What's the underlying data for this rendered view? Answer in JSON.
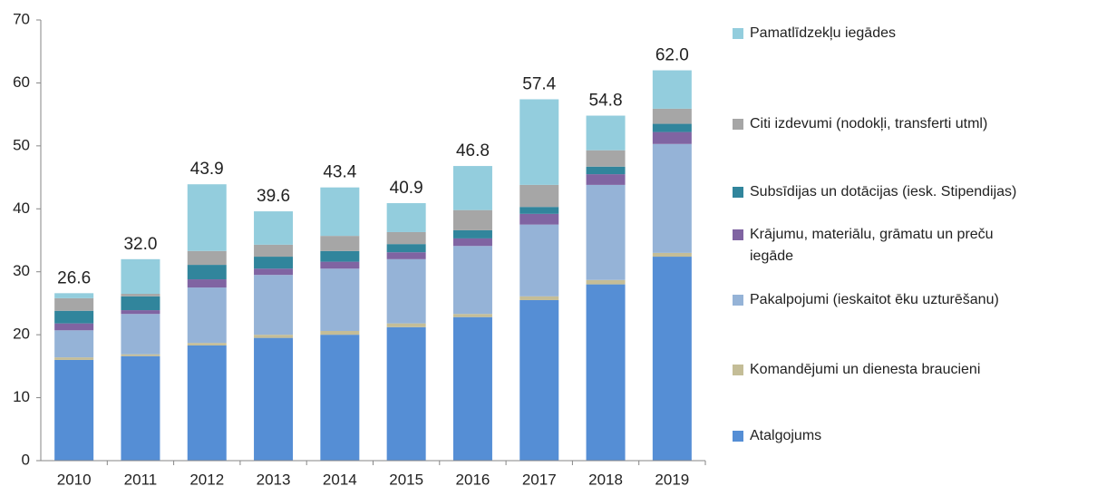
{
  "chart_data": {
    "type": "stacked_bar",
    "categories": [
      "2010",
      "2011",
      "2012",
      "2013",
      "2014",
      "2015",
      "2016",
      "2017",
      "2018",
      "2019"
    ],
    "series": [
      {
        "name": "Atalgojums",
        "color": "#558ed5",
        "values": [
          16.0,
          16.6,
          18.3,
          19.5,
          20.0,
          21.2,
          22.8,
          25.5,
          28.0,
          32.4
        ]
      },
      {
        "name": "Komandējumi un dienesta braucieni",
        "color": "#c4bd97",
        "values": [
          0.4,
          0.3,
          0.4,
          0.5,
          0.6,
          0.6,
          0.5,
          0.6,
          0.7,
          0.6
        ]
      },
      {
        "name": "Pakalpojumi (ieskaitot ēku uzturēšanu)",
        "color": "#95b3d7",
        "values": [
          4.3,
          6.4,
          8.8,
          9.5,
          9.9,
          10.2,
          10.8,
          11.4,
          15.1,
          17.3
        ]
      },
      {
        "name": "Krājumu, materiālu, grāmatu un preču iegāde",
        "color": "#8064a2",
        "values": [
          1.1,
          0.6,
          1.3,
          1.0,
          1.1,
          1.1,
          1.2,
          1.7,
          1.7,
          1.9
        ]
      },
      {
        "name": "Subsīdijas un dotācijas (iesk. Stipendijas)",
        "color": "#31859c",
        "values": [
          2.0,
          2.2,
          2.3,
          1.9,
          1.7,
          1.3,
          1.3,
          1.1,
          1.2,
          1.3
        ]
      },
      {
        "name": "Citi izdevumi  (nodokļi, transferti utml)",
        "color": "#a6a6a6",
        "values": [
          2.0,
          0.4,
          2.2,
          1.9,
          2.4,
          1.9,
          3.2,
          3.5,
          2.6,
          2.4
        ]
      },
      {
        "name": "Pamatlīdzekļu iegādes",
        "color": "#93cddd",
        "values": [
          0.8,
          5.5,
          10.6,
          5.3,
          7.7,
          4.6,
          7.0,
          13.6,
          5.5,
          6.1
        ]
      }
    ],
    "totals": [
      26.6,
      32.0,
      43.9,
      39.6,
      43.4,
      40.9,
      46.8,
      57.4,
      54.8,
      62.0
    ],
    "total_labels": [
      "26.6",
      "32.0",
      "43.9",
      "39.6",
      "43.4",
      "40.9",
      "46.8",
      "57.4",
      "54.8",
      "62.0"
    ],
    "ylim": [
      0,
      70
    ],
    "yticks": [
      0,
      10,
      20,
      30,
      40,
      50,
      60,
      70
    ],
    "grid": false,
    "legend": "right"
  }
}
